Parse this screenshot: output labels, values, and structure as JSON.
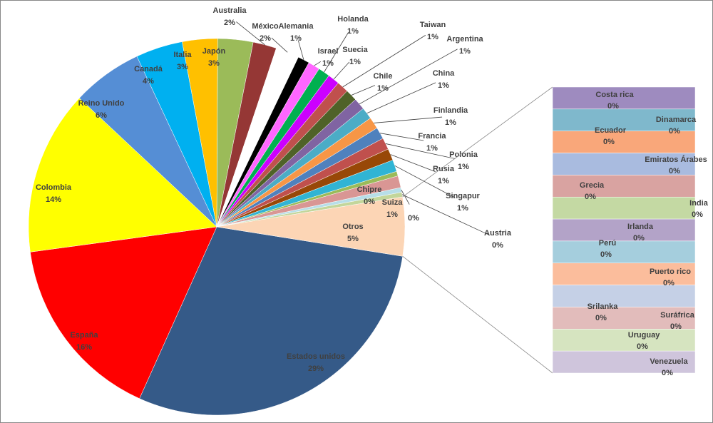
{
  "chart_data": [
    {
      "type": "pie",
      "categories": [
        "Estados unidos",
        "España",
        "Colombia",
        "Reino Unido",
        "Canadá",
        "Italia",
        "Japón",
        "Australia",
        "México",
        "Alemania",
        "Israel",
        "Holanda",
        "Suecia",
        "Taiwan",
        "Chile",
        "Argentina",
        "China",
        "Finlandia",
        "Francia",
        "Polonia",
        "Rusia",
        "Singapur",
        "Chipre",
        "Suiza",
        null,
        "Austria",
        "Otros"
      ],
      "values": [
        29,
        16,
        14,
        6,
        4,
        3,
        3,
        2,
        2,
        1,
        1,
        1,
        1,
        1,
        1,
        1,
        1,
        1,
        1,
        1,
        1,
        1,
        0.4,
        1,
        0.4,
        0.4,
        5
      ],
      "value_labels": [
        "29%",
        "16%",
        "14%",
        "6%",
        "4%",
        "3%",
        "3%",
        "2%",
        "2%",
        "1%",
        "1%",
        "1%",
        "1%",
        "1%",
        "1%",
        "1%",
        "1%",
        "1%",
        "1%",
        "1%",
        "1%",
        "1%",
        "0%",
        "1%",
        "0%",
        "0%",
        "5%"
      ],
      "colors": [
        "#355a88",
        "#ff0000",
        "#ffff00",
        "#558ed5",
        "#00b0f0",
        "#ffc000",
        "#9bbb59",
        "#953735",
        "#ffffff",
        "#000000",
        "#ff66ff",
        "#00b050",
        "#cc00ff",
        "#c0504d",
        "#4f6228",
        "#8064a2",
        "#4bacc6",
        "#f79646",
        "#4f81bd",
        "#c0504d",
        "#984807",
        "#31b4d4",
        "#9bbb59",
        "#d99694",
        "#b7dee8",
        "#c3d69b",
        "#fcd5b5"
      ]
    },
    {
      "type": "bar",
      "categories": [
        "Costa rica",
        "Dinamarca",
        "Ecuador",
        "Emiratos Árabes",
        "Grecia",
        "India",
        "Irlanda",
        "Perú",
        "Puerto rico",
        "Srilanka",
        "Suráfrica",
        "Uruguay",
        "Venezuela"
      ],
      "values": [
        0.38,
        0.38,
        0.38,
        0.38,
        0.38,
        0.38,
        0.38,
        0.38,
        0.38,
        0.38,
        0.38,
        0.38,
        0.38
      ],
      "value_labels": [
        "0%",
        "0%",
        "0%",
        "0%",
        "0%",
        "0%",
        "0%",
        "0%",
        "0%",
        "0%",
        "0%",
        "0%",
        "0%"
      ],
      "colors": [
        "#9e8bbf",
        "#7fb8cc",
        "#f9a77a",
        "#a9bbdf",
        "#d9a3a1",
        "#c4d9a3",
        "#b3a3c8",
        "#a5cedd",
        "#fbbd9c",
        "#c5d0e6",
        "#e2bcbb",
        "#d6e4c0",
        "#cfc5dc"
      ]
    }
  ]
}
